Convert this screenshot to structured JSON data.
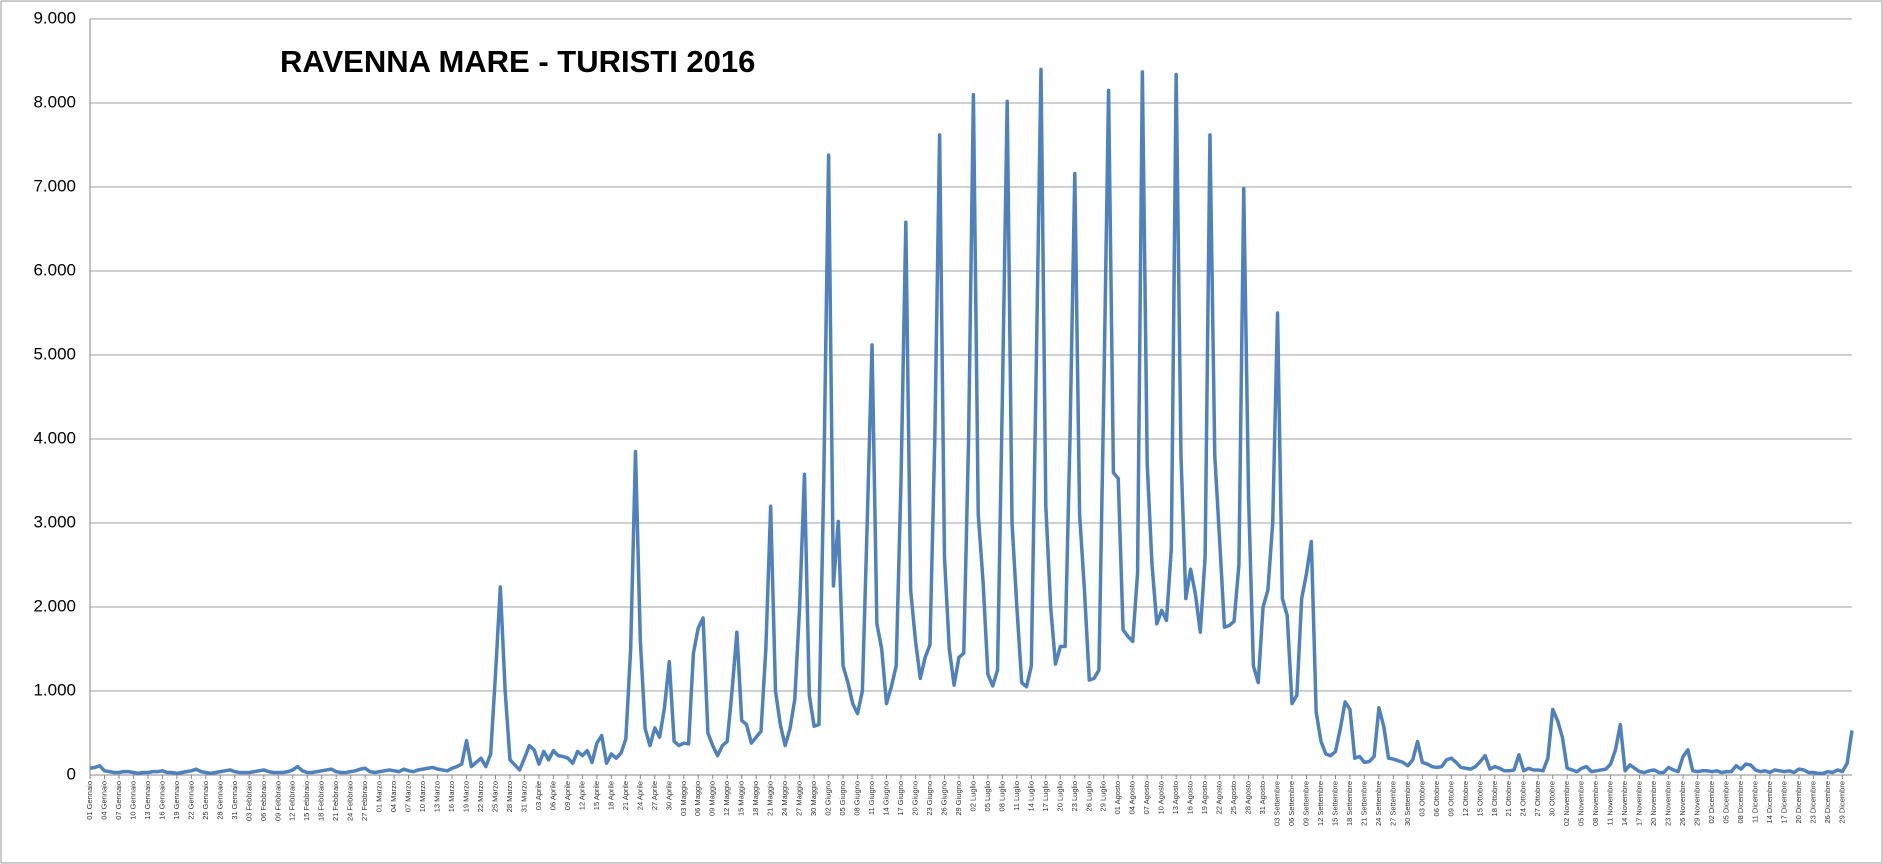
{
  "chart_data": {
    "type": "line",
    "title": "RAVENNA MARE - TURISTI 2016",
    "color": "#4f81bd",
    "grid": true,
    "ylim": [
      0,
      9000
    ],
    "yticks": [
      0,
      {
        "value": 1000,
        "label": "1.000"
      },
      {
        "value": 2000,
        "label": "2.000"
      },
      {
        "value": 3000,
        "label": "3.000"
      },
      {
        "value": 4000,
        "label": "4.000"
      },
      {
        "value": 5000,
        "label": "5.000"
      },
      {
        "value": 6000,
        "label": "6.000"
      },
      {
        "value": 7000,
        "label": "7.000"
      },
      {
        "value": 8000,
        "label": "8.000"
      },
      {
        "value": 9000,
        "label": "9.000"
      }
    ],
    "categories": [
      "01 Gennaio",
      null,
      null,
      "04 Gennaio",
      null,
      null,
      "07 Gennaio",
      null,
      null,
      "10 Gennaio",
      null,
      null,
      "13 Gennaio",
      null,
      null,
      "16 Gennaio",
      null,
      null,
      "19 Gennaio",
      null,
      null,
      "22 Gennaio",
      null,
      null,
      "25 Gennaio",
      null,
      null,
      "28 Gennaio",
      null,
      null,
      "31 Gennaio",
      null,
      null,
      "03 Febbraio",
      null,
      null,
      "06 Febbraio",
      null,
      null,
      "09 Febbraio",
      null,
      null,
      "12 Febbraio",
      null,
      null,
      "15 Febbraio",
      null,
      null,
      "18 Febbraio",
      null,
      null,
      "21 Febbraio",
      null,
      null,
      "24 Febbraio",
      null,
      null,
      "27 Febbraio",
      null,
      null,
      "01 Marzo",
      null,
      null,
      "04 Marzo",
      null,
      null,
      "07 Marzo",
      null,
      null,
      "10 Marzo",
      null,
      null,
      "13 Marzo",
      null,
      null,
      "16 Marzo",
      null,
      null,
      "19 Marzo",
      null,
      null,
      "22 Marzo",
      null,
      null,
      "25 Marzo",
      null,
      null,
      "28 Marzo",
      null,
      null,
      "31 Marzo",
      null,
      null,
      "03 Aprile",
      null,
      null,
      "06 Aprile",
      null,
      null,
      "09 Aprile",
      null,
      null,
      "12 Aprile",
      null,
      null,
      "15 Aprile",
      null,
      null,
      "18 Aprile",
      null,
      null,
      "21 Aprile",
      null,
      null,
      "24 Aprile",
      null,
      null,
      "27 Aprile",
      null,
      null,
      "30 Aprile",
      null,
      null,
      "03 Maggio",
      null,
      null,
      "06 Maggio",
      null,
      null,
      "09 Maggio",
      null,
      null,
      "12 Maggio",
      null,
      null,
      "15 Maggio",
      null,
      null,
      "18 Maggio",
      null,
      null,
      "21 Maggio",
      null,
      null,
      "24 Maggio",
      null,
      null,
      "27 Maggio",
      null,
      null,
      "30 Maggio",
      null,
      null,
      "02 Giugno",
      null,
      null,
      "05 Giugno",
      null,
      null,
      "08 Giugno",
      null,
      null,
      "11 Giugno",
      null,
      null,
      "14 Giugno",
      null,
      null,
      "17 Giugno",
      null,
      null,
      "20 Giugno",
      null,
      null,
      "23 Giugno",
      null,
      null,
      "26 Giugno",
      null,
      null,
      "29 Giugno",
      null,
      null,
      "02 Luglio",
      null,
      null,
      "05 Luglio",
      null,
      null,
      "08 Luglio",
      null,
      null,
      "11 Luglio",
      null,
      null,
      "14 Luglio",
      null,
      null,
      "17 Luglio",
      null,
      null,
      "20 Luglio",
      null,
      null,
      "23 Luglio",
      null,
      null,
      "26 Luglio",
      null,
      null,
      "29 Luglio",
      null,
      null,
      "01 Agosto",
      null,
      null,
      "04 Agosto",
      null,
      null,
      "07 Agosto",
      null,
      null,
      "10 Agosto",
      null,
      null,
      "13 Agosto",
      null,
      null,
      "16 Agosto",
      null,
      null,
      "19 Agosto",
      null,
      null,
      "22 Agosto",
      null,
      null,
      "25 Agosto",
      null,
      null,
      "28 Agosto",
      null,
      null,
      "31 Agosto",
      null,
      null,
      "03 Settembre",
      null,
      null,
      "06 Settembre",
      null,
      null,
      "09 Settembre",
      null,
      null,
      "12 Settembre",
      null,
      null,
      "15 Settembre",
      null,
      null,
      "18 Settembre",
      null,
      null,
      "21 Settembre",
      null,
      null,
      "24 Settembre",
      null,
      null,
      "27 Settembre",
      null,
      null,
      "30 Settembre",
      null,
      null,
      "03 Ottobre",
      null,
      null,
      "06 Ottobre",
      null,
      null,
      "09 Ottobre",
      null,
      null,
      "12 Ottobre",
      null,
      null,
      "15 Ottobre",
      null,
      null,
      "18 Ottobre",
      null,
      null,
      "21 Ottobre",
      null,
      null,
      "24 Ottobre",
      null,
      null,
      "27 Ottobre",
      null,
      null,
      "30 Ottobre",
      null,
      null,
      "02 Novembre",
      null,
      null,
      "05 Novembre",
      null,
      null,
      "08 Novembre",
      null,
      null,
      "11 Novembre",
      null,
      null,
      "14 Novembre",
      null,
      null,
      "17 Novembre",
      null,
      null,
      "20 Novembre",
      null,
      null,
      "23 Novembre",
      null,
      null,
      "26 Novembre",
      null,
      null,
      "29 Novembre",
      null,
      null,
      "02 Dicembre",
      null,
      null,
      "05 Dicembre",
      null,
      null,
      "08 Dicembre",
      null,
      null,
      "11 Dicembre",
      null,
      null,
      "14 Dicembre",
      null,
      null,
      "17 Dicembre",
      null,
      null,
      "20 Dicembre",
      null,
      null,
      "23 Dicembre",
      null,
      null,
      "26 Dicembre",
      null,
      null,
      "29 Dicembre",
      null,
      null
    ],
    "values": [
      80,
      90,
      110,
      50,
      40,
      30,
      30,
      40,
      40,
      30,
      20,
      30,
      30,
      40,
      40,
      50,
      30,
      30,
      20,
      30,
      40,
      50,
      70,
      40,
      30,
      20,
      30,
      40,
      50,
      60,
      40,
      30,
      30,
      30,
      40,
      50,
      60,
      40,
      30,
      30,
      30,
      40,
      60,
      100,
      50,
      30,
      30,
      40,
      50,
      60,
      70,
      40,
      30,
      30,
      40,
      50,
      70,
      80,
      40,
      30,
      40,
      50,
      60,
      50,
      40,
      70,
      50,
      40,
      60,
      70,
      80,
      90,
      70,
      60,
      50,
      80,
      100,
      130,
      410,
      100,
      150,
      200,
      100,
      250,
      1200,
      2240,
      1000,
      180,
      120,
      60,
      200,
      350,
      300,
      130,
      280,
      180,
      290,
      230,
      220,
      200,
      140,
      280,
      230,
      290,
      150,
      380,
      470,
      140,
      250,
      200,
      260,
      430,
      1500,
      3850,
      1600,
      550,
      350,
      560,
      450,
      800,
      1350,
      400,
      350,
      380,
      370,
      1450,
      1750,
      1870,
      500,
      350,
      230,
      350,
      400,
      1000,
      1700,
      650,
      600,
      380,
      450,
      520,
      1500,
      3200,
      1000,
      600,
      350,
      550,
      900,
      2000,
      3580,
      950,
      580,
      600,
      3500,
      7380,
      2250,
      3020,
      1300,
      1100,
      850,
      730,
      1000,
      3000,
      5120,
      1800,
      1500,
      850,
      1050,
      1300,
      3500,
      6580,
      2200,
      1600,
      1150,
      1400,
      1550,
      4000,
      7620,
      2600,
      1500,
      1070,
      1400,
      1450,
      4000,
      8100,
      3100,
      2300,
      1200,
      1060,
      1250,
      4500,
      8020,
      3000,
      2000,
      1100,
      1050,
      1300,
      4800,
      8400,
      3200,
      2000,
      1320,
      1530,
      1530,
      4000,
      7160,
      3100,
      2200,
      1130,
      1150,
      1250,
      4500,
      8150,
      3600,
      3530,
      1730,
      1650,
      1590,
      2400,
      8370,
      3700,
      2500,
      1800,
      1960,
      1840,
      2700,
      8340,
      3800,
      2100,
      2450,
      2150,
      1700,
      2600,
      7620,
      3800,
      2800,
      1760,
      1780,
      1830,
      2500,
      6980,
      3300,
      1300,
      1100,
      2000,
      2200,
      3000,
      5500,
      2100,
      1900,
      850,
      950,
      2100,
      2400,
      2780,
      750,
      400,
      250,
      230,
      280,
      550,
      870,
      780,
      200,
      220,
      150,
      160,
      220,
      800,
      580,
      200,
      190,
      170,
      150,
      110,
      180,
      400,
      150,
      130,
      100,
      90,
      100,
      180,
      200,
      150,
      90,
      80,
      70,
      100,
      160,
      230,
      70,
      100,
      80,
      50,
      50,
      60,
      240,
      50,
      80,
      60,
      60,
      50,
      200,
      780,
      650,
      450,
      80,
      60,
      40,
      80,
      100,
      40,
      50,
      60,
      70,
      130,
      300,
      600,
      50,
      120,
      80,
      40,
      30,
      50,
      60,
      30,
      30,
      90,
      60,
      40,
      220,
      300,
      50,
      40,
      50,
      50,
      40,
      50,
      30,
      40,
      40,
      110,
      70,
      130,
      120,
      60,
      40,
      50,
      30,
      60,
      50,
      40,
      50,
      30,
      70,
      60,
      30,
      30,
      20,
      20,
      40,
      30,
      60,
      40,
      140,
      530
    ]
  }
}
